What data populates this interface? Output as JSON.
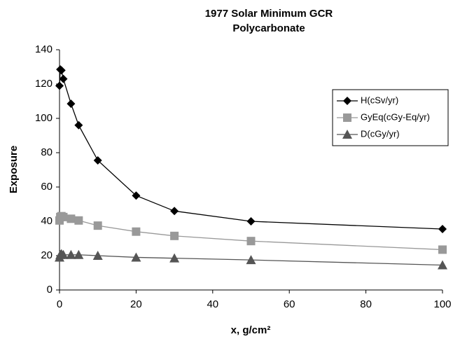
{
  "chart_data": {
    "type": "line",
    "title": [
      "1977 Solar Minimum GCR",
      "Polycarbonate"
    ],
    "x_label": "x, g/cm²",
    "y_label": "Exposure",
    "x": [
      0,
      0.2,
      0.5,
      1,
      3,
      5,
      10,
      20,
      30,
      50,
      100
    ],
    "series": [
      {
        "name": "H(cSv/yr)",
        "color": "#000000",
        "marker": "diamond",
        "values": [
          119,
          128.5,
          128,
          123,
          108.5,
          96,
          75.5,
          55,
          46,
          40,
          35.5
        ]
      },
      {
        "name": "GyEq(cGy-Eq/yr)",
        "color": "#999999",
        "marker": "square",
        "values": [
          40.5,
          42.5,
          43,
          42.5,
          41.5,
          40.5,
          37.5,
          34,
          31.5,
          28.5,
          23.5
        ]
      },
      {
        "name": "D(cGy/yr)",
        "color": "#555555",
        "marker": "triangle",
        "values": [
          19,
          20.5,
          21,
          20.5,
          20.5,
          20.5,
          20,
          19,
          18.5,
          17.5,
          14.5
        ]
      }
    ],
    "xlim": [
      0,
      100
    ],
    "xticks": [
      0,
      20,
      40,
      60,
      80,
      100
    ],
    "ylim": [
      0,
      140
    ],
    "yticks": [
      0,
      20,
      40,
      60,
      80,
      100,
      120,
      140
    ],
    "grid": false,
    "legend": "upper right"
  }
}
